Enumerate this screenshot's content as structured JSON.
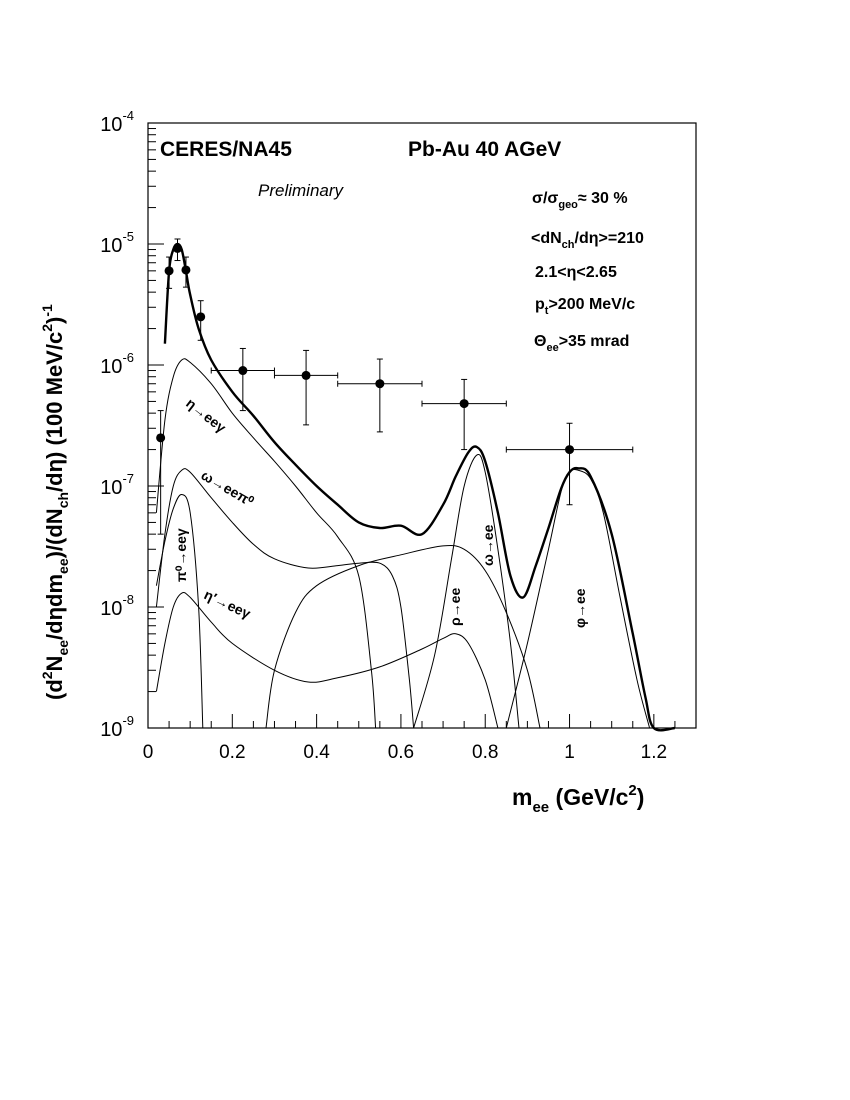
{
  "chart_data": {
    "type": "line",
    "title": "CERES/NA45",
    "system": "Pb-Au 40 AGeV",
    "status": "Preliminary",
    "conditions": {
      "sigma_base": "σ/σ",
      "sigma_sub": "geo",
      "sigma_val": "≈ 30 %",
      "mult_a": "<dN",
      "mult_sub": "ch",
      "mult_b": "/dη>=210",
      "eta": "2.1<η<2.65",
      "pt_a": "p",
      "pt_sub": "t",
      "pt_b": ">200 MeV/c",
      "theta_a": "Θ",
      "theta_sub": "ee",
      "theta_b": ">35 mrad"
    },
    "x_axis": {
      "label": "m",
      "label_sub": "ee",
      "label_rest": " (GeV/c",
      "label_sup": "2",
      "label_end": ")",
      "range": [
        0,
        1.3
      ],
      "tick_labels": [
        "0",
        "0.2",
        "0.4",
        "0.6",
        "0.8",
        "1",
        "1.2"
      ]
    },
    "y_axis": {
      "scale": "log",
      "range": [
        1e-09,
        0.0001
      ],
      "tick_labels": [
        {
          "base": "10",
          "exp": "-9"
        },
        {
          "base": "10",
          "exp": "-8"
        },
        {
          "base": "10",
          "exp": "-7"
        },
        {
          "base": "10",
          "exp": "-6"
        },
        {
          "base": "10",
          "exp": "-5"
        },
        {
          "base": "10",
          "exp": "-4"
        }
      ],
      "label_parts": [
        {
          "t": "(d"
        },
        {
          "t": "2",
          "s": "sup"
        },
        {
          "t": "N"
        },
        {
          "t": "ee",
          "s": "sub"
        },
        {
          "t": "/dηdm"
        },
        {
          "t": "ee",
          "s": "sub"
        },
        {
          "t": ")/(dN"
        },
        {
          "t": "ch",
          "s": "sub"
        },
        {
          "t": "/dη) (100 MeV/c"
        },
        {
          "t": "2",
          "s": "sup"
        },
        {
          "t": ")"
        },
        {
          "t": "-1",
          "s": "sup"
        }
      ]
    },
    "data_points": [
      {
        "x": 0.03,
        "y": 2.5e-07,
        "xerr": 0.0,
        "ylo": 4e-08,
        "yhi": 4.2e-07
      },
      {
        "x": 0.05,
        "y": 6e-06,
        "xerr": 0.0,
        "ylo": 4.3e-06,
        "yhi": 7.8e-06
      },
      {
        "x": 0.07,
        "y": 9.2e-06,
        "xerr": 0.0,
        "ylo": 7.3e-06,
        "yhi": 1.1e-05
      },
      {
        "x": 0.09,
        "y": 6.1e-06,
        "xerr": 0.0,
        "ylo": 4.4e-06,
        "yhi": 7.8e-06
      },
      {
        "x": 0.125,
        "y": 2.5e-06,
        "xerr": 0.0,
        "ylo": 1.6e-06,
        "yhi": 3.4e-06
      },
      {
        "x": 0.225,
        "y": 9e-07,
        "xerr": 0.075,
        "ylo": 4.2e-07,
        "yhi": 1.37e-06
      },
      {
        "x": 0.375,
        "y": 8.2e-07,
        "xerr": 0.075,
        "ylo": 3.2e-07,
        "yhi": 1.32e-06
      },
      {
        "x": 0.55,
        "y": 7e-07,
        "xerr": 0.1,
        "ylo": 2.8e-07,
        "yhi": 1.12e-06
      },
      {
        "x": 0.75,
        "y": 4.8e-07,
        "xerr": 0.1,
        "ylo": 2e-07,
        "yhi": 7.6e-07
      },
      {
        "x": 1.0,
        "y": 2e-07,
        "xerr": 0.15,
        "ylo": 7e-08,
        "yhi": 3.3e-07
      }
    ],
    "total_curve": [
      [
        0.04,
        1.5e-06
      ],
      [
        0.05,
        6e-06
      ],
      [
        0.06,
        9e-06
      ],
      [
        0.07,
        1e-05
      ],
      [
        0.08,
        9e-06
      ],
      [
        0.09,
        6e-06
      ],
      [
        0.1,
        3.8e-06
      ],
      [
        0.12,
        2e-06
      ],
      [
        0.15,
        1.1e-06
      ],
      [
        0.2,
        6e-07
      ],
      [
        0.25,
        3.8e-07
      ],
      [
        0.3,
        2.3e-07
      ],
      [
        0.35,
        1.5e-07
      ],
      [
        0.4,
        1e-07
      ],
      [
        0.45,
        7e-08
      ],
      [
        0.5,
        5e-08
      ],
      [
        0.55,
        4.5e-08
      ],
      [
        0.6,
        4.7e-08
      ],
      [
        0.65,
        4e-08
      ],
      [
        0.7,
        7e-08
      ],
      [
        0.73,
        1.2e-07
      ],
      [
        0.76,
        1.9e-07
      ],
      [
        0.78,
        2.1e-07
      ],
      [
        0.8,
        1.6e-07
      ],
      [
        0.83,
        6e-08
      ],
      [
        0.86,
        1.8e-08
      ],
      [
        0.89,
        1.2e-08
      ],
      [
        0.92,
        2.2e-08
      ],
      [
        0.95,
        4.5e-08
      ],
      [
        0.98,
        9.5e-08
      ],
      [
        1.0,
        1.3e-07
      ],
      [
        1.02,
        1.4e-07
      ],
      [
        1.05,
        1.2e-07
      ],
      [
        1.1,
        4e-08
      ],
      [
        1.15,
        6e-09
      ],
      [
        1.18,
        1.8e-09
      ],
      [
        1.2,
        1e-09
      ],
      [
        1.25,
        1e-09
      ]
    ],
    "components": [
      {
        "name": "pi0",
        "label": "π⁰→eeγ",
        "points": [
          [
            0.02,
            1.5e-08
          ],
          [
            0.04,
            3.5e-08
          ],
          [
            0.06,
            6.5e-08
          ],
          [
            0.08,
            8.5e-08
          ],
          [
            0.1,
            6e-08
          ],
          [
            0.12,
            1e-08
          ],
          [
            0.13,
            1e-09
          ]
        ]
      },
      {
        "name": "eta",
        "label": "η→eeγ",
        "points": [
          [
            0.02,
            6e-08
          ],
          [
            0.04,
            3.5e-07
          ],
          [
            0.06,
            8e-07
          ],
          [
            0.08,
            1.1e-06
          ],
          [
            0.1,
            1.05e-06
          ],
          [
            0.15,
            7e-07
          ],
          [
            0.2,
            4e-07
          ],
          [
            0.25,
            2.5e-07
          ],
          [
            0.3,
            1.6e-07
          ],
          [
            0.35,
            1e-07
          ],
          [
            0.4,
            6e-08
          ],
          [
            0.45,
            3.8e-08
          ],
          [
            0.5,
            1.8e-08
          ],
          [
            0.53,
            3e-09
          ],
          [
            0.54,
            1e-09
          ]
        ]
      },
      {
        "name": "omega-dalitz",
        "label": "ω→eeπ⁰",
        "points": [
          [
            0.02,
            1e-08
          ],
          [
            0.04,
            4e-08
          ],
          [
            0.06,
            1e-07
          ],
          [
            0.08,
            1.35e-07
          ],
          [
            0.1,
            1.3e-07
          ],
          [
            0.15,
            8e-08
          ],
          [
            0.2,
            5e-08
          ],
          [
            0.25,
            3.3e-08
          ],
          [
            0.3,
            2.5e-08
          ],
          [
            0.38,
            2.1e-08
          ],
          [
            0.45,
            2.2e-08
          ],
          [
            0.5,
            2.3e-08
          ],
          [
            0.55,
            2.3e-08
          ],
          [
            0.58,
            1.8e-08
          ],
          [
            0.6,
            1e-08
          ],
          [
            0.62,
            2.5e-09
          ],
          [
            0.63,
            1e-09
          ]
        ]
      },
      {
        "name": "eta-prime",
        "label": "η′→eeγ",
        "points": [
          [
            0.02,
            2e-09
          ],
          [
            0.04,
            5e-09
          ],
          [
            0.06,
            1e-08
          ],
          [
            0.08,
            1.3e-08
          ],
          [
            0.1,
            1.2e-08
          ],
          [
            0.15,
            7.5e-09
          ],
          [
            0.2,
            5e-09
          ],
          [
            0.3,
            3e-09
          ],
          [
            0.38,
            2.4e-09
          ],
          [
            0.45,
            2.6e-09
          ],
          [
            0.55,
            3.2e-09
          ],
          [
            0.65,
            4.5e-09
          ],
          [
            0.7,
            5.5e-09
          ],
          [
            0.73,
            6e-09
          ],
          [
            0.76,
            5e-09
          ],
          [
            0.8,
            2.5e-09
          ],
          [
            0.83,
            1e-09
          ]
        ]
      },
      {
        "name": "rho",
        "label": "ρ→ee",
        "points": [
          [
            0.28,
            1e-09
          ],
          [
            0.3,
            3e-09
          ],
          [
            0.35,
            9e-09
          ],
          [
            0.4,
            1.5e-08
          ],
          [
            0.5,
            2.2e-08
          ],
          [
            0.6,
            2.7e-08
          ],
          [
            0.7,
            3.2e-08
          ],
          [
            0.75,
            3e-08
          ],
          [
            0.8,
            2e-08
          ],
          [
            0.85,
            9e-09
          ],
          [
            0.9,
            3e-09
          ],
          [
            0.93,
            1e-09
          ]
        ]
      },
      {
        "name": "omega",
        "label": "ω→ee",
        "points": [
          [
            0.63,
            1e-09
          ],
          [
            0.68,
            4e-09
          ],
          [
            0.72,
            2.5e-08
          ],
          [
            0.75,
            1e-07
          ],
          [
            0.78,
            1.8e-07
          ],
          [
            0.8,
            1.3e-07
          ],
          [
            0.83,
            3e-08
          ],
          [
            0.86,
            5e-09
          ],
          [
            0.88,
            1e-09
          ]
        ]
      },
      {
        "name": "phi",
        "label": "φ→ee",
        "points": [
          [
            0.85,
            1e-09
          ],
          [
            0.9,
            5e-09
          ],
          [
            0.95,
            3e-08
          ],
          [
            0.98,
            9e-08
          ],
          [
            1.0,
            1.3e-07
          ],
          [
            1.02,
            1.35e-07
          ],
          [
            1.05,
            1.15e-07
          ],
          [
            1.08,
            6e-08
          ],
          [
            1.12,
            1.2e-08
          ],
          [
            1.16,
            2.5e-09
          ],
          [
            1.19,
            1e-09
          ]
        ]
      }
    ],
    "curve_labels": {
      "eta": "η→eeγ",
      "omega_dalitz": "ω→eeπ⁰",
      "pi0": "π⁰→eeγ",
      "eta_prime": "η′→eeγ",
      "rho": "ρ→ee",
      "omega": "ω→ee",
      "phi": "φ→ee"
    }
  }
}
